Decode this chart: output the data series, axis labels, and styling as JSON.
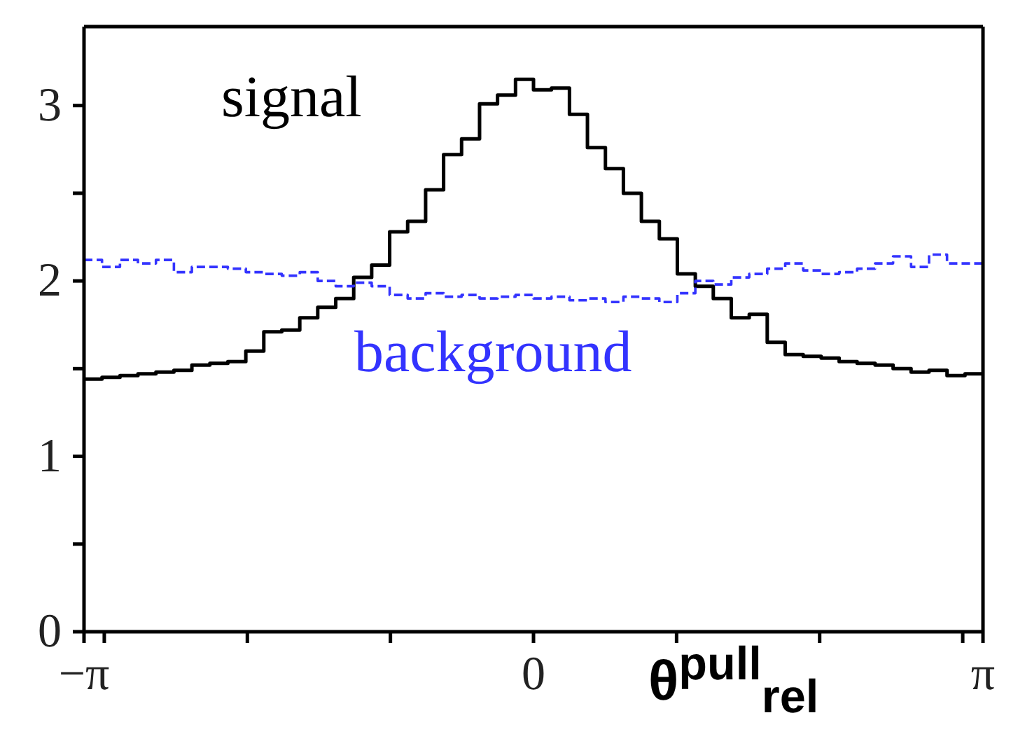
{
  "chart_data": {
    "type": "histogram",
    "xlabel": "θ$^{pull}$$_{rel}$",
    "bins": [
      -3.1416,
      -3.0159,
      -2.8903,
      -2.7646,
      -2.6389,
      -2.5133,
      -2.3876,
      -2.2619,
      -2.1363,
      -2.0106,
      -1.885,
      -1.7593,
      -1.6336,
      -1.508,
      -1.3823,
      -1.2566,
      -1.131,
      -1.0053,
      -0.8796,
      -0.754,
      -0.6283,
      -0.5027,
      -0.377,
      -0.2513,
      -0.1257,
      0,
      0.1257,
      0.2513,
      0.377,
      0.5027,
      0.6283,
      0.754,
      0.8796,
      1.0053,
      1.131,
      1.2566,
      1.3823,
      1.508,
      1.6336,
      1.7593,
      1.885,
      2.0106,
      2.1363,
      2.2619,
      2.3876,
      2.5133,
      2.6389,
      2.7646,
      2.8903,
      3.0159,
      3.1416
    ],
    "series": [
      {
        "name": "signal",
        "color": "#000000",
        "line_style": "solid",
        "values": [
          1.44,
          1.45,
          1.46,
          1.47,
          1.48,
          1.49,
          1.52,
          1.53,
          1.54,
          1.6,
          1.71,
          1.72,
          1.79,
          1.85,
          1.9,
          2.02,
          2.09,
          2.28,
          2.34,
          2.52,
          2.72,
          2.81,
          3.01,
          3.06,
          3.15,
          3.09,
          3.1,
          2.95,
          2.76,
          2.64,
          2.5,
          2.34,
          2.24,
          2.04,
          1.97,
          1.9,
          1.79,
          1.81,
          1.65,
          1.58,
          1.57,
          1.56,
          1.54,
          1.53,
          1.52,
          1.5,
          1.48,
          1.49,
          1.46,
          1.47
        ]
      },
      {
        "name": "background",
        "color": "#3333ff",
        "line_style": "dashed",
        "values": [
          2.12,
          2.08,
          2.12,
          2.1,
          2.12,
          2.05,
          2.08,
          2.08,
          2.07,
          2.05,
          2.04,
          2.03,
          2.05,
          2.0,
          1.97,
          1.99,
          1.97,
          1.92,
          1.9,
          1.93,
          1.91,
          1.92,
          1.9,
          1.91,
          1.92,
          1.9,
          1.91,
          1.89,
          1.9,
          1.88,
          1.91,
          1.9,
          1.88,
          1.93,
          2.0,
          1.98,
          2.02,
          2.04,
          2.07,
          2.1,
          2.06,
          2.04,
          2.05,
          2.07,
          2.1,
          2.14,
          2.08,
          2.15,
          2.1,
          2.1
        ]
      }
    ],
    "xlim": [
      -3.1416,
      3.1416
    ],
    "xticks": [
      {
        "value": -3.1416,
        "label": "−π"
      },
      {
        "value": -3,
        "label": null
      },
      {
        "value": -2,
        "label": null
      },
      {
        "value": -1,
        "label": null
      },
      0,
      {
        "value": 1,
        "label": null
      },
      {
        "value": 2,
        "label": null
      },
      {
        "value": 3,
        "label": null
      },
      {
        "value": 3.1416,
        "label": "π"
      }
    ],
    "ylim": [
      0,
      3.45
    ],
    "yticks": [
      0,
      {
        "value": 0.5,
        "label": null
      },
      1,
      {
        "value": 1.5,
        "label": null
      },
      2,
      {
        "value": 2.5,
        "label": null
      },
      3
    ],
    "grid": false,
    "legend": false
  }
}
